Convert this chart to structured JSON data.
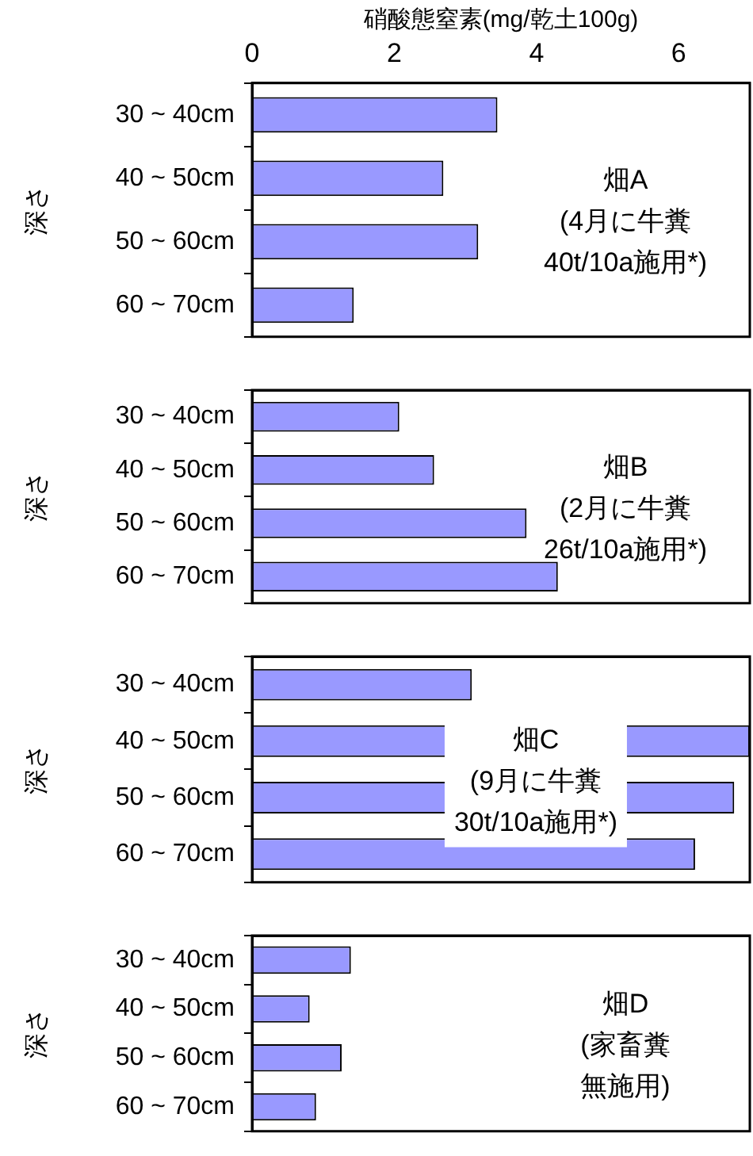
{
  "chart_data": [
    {
      "type": "bar",
      "orientation": "horizontal",
      "xlabel": "硝酸態窒素(mg/乾土100g)",
      "ylabel": "深さ",
      "categories": [
        "30 ~ 40cm",
        "40 ~ 50cm",
        "50 ~ 60cm",
        "60 ~ 70cm"
      ],
      "values": [
        3.45,
        2.69,
        3.18,
        1.43
      ],
      "color": "#9999ff",
      "xlim": [
        0,
        7
      ],
      "xticks": [
        0,
        2,
        4,
        6
      ],
      "annotations": [
        "畑A",
        "(4月に牛糞",
        "40t/10a施用*)"
      ]
    },
    {
      "type": "bar",
      "orientation": "horizontal",
      "ylabel": "深さ",
      "categories": [
        "30 ~ 40cm",
        "40 ~ 50cm",
        "50 ~ 60cm",
        "60 ~ 70cm"
      ],
      "values": [
        2.07,
        2.56,
        3.86,
        4.3
      ],
      "color": "#9999ff",
      "xlim": [
        0,
        7
      ],
      "xticks": [
        0,
        2,
        4,
        6
      ],
      "tick_labels": "y",
      "annotations": [
        "畑B",
        "(2月に牛糞",
        "26t/10a施用*)"
      ]
    },
    {
      "type": "bar",
      "orientation": "horizontal",
      "ylabel": "深さ",
      "categories": [
        "30 ~ 40cm",
        "40 ~ 50cm",
        "50 ~ 60cm",
        "60 ~ 70cm"
      ],
      "values": [
        3.09,
        7,
        6.78,
        6.23
      ],
      "color": "#9999ff",
      "xlim": [
        0,
        7
      ],
      "xticks": [
        0,
        2,
        4,
        6
      ],
      "tick_labels": "y",
      "annotations": [
        "畑C",
        "(9月に牛糞",
        "30t/10a施用*)"
      ]
    },
    {
      "type": "bar",
      "orientation": "horizontal",
      "ylabel": "深さ",
      "categories": [
        "30 ~ 40cm",
        "40 ~ 50cm",
        "50 ~ 60cm",
        "60 ~ 70cm"
      ],
      "values": [
        1.39,
        0.81,
        1.26,
        0.9
      ],
      "color": "#9999ff",
      "xlim": [
        0,
        7
      ],
      "xticks": [
        0,
        2,
        4,
        6
      ],
      "tick_labels": "y",
      "annotations": [
        "畑D",
        "(家畜糞",
        "無施用)"
      ]
    }
  ]
}
